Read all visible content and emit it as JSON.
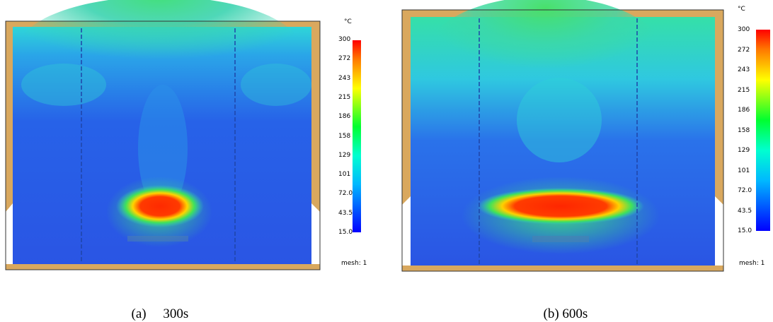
{
  "chart_data": [
    {
      "type": "heatmap",
      "caption_index": "(a)",
      "caption_time": "300s",
      "unit": "°C",
      "mesh_label": "mesh: 1",
      "colorbar": {
        "min": 15.0,
        "max": 300,
        "ticks": [
          "300",
          "272",
          "243",
          "215",
          "186",
          "158",
          "129",
          "101",
          "72.0",
          "43.5",
          "15.0"
        ]
      },
      "hot_zone": {
        "peak_c": 300,
        "shape": "compact",
        "width_fraction": 0.28
      },
      "colors": [
        "#0000ff",
        "#00ffff",
        "#00ff00",
        "#ffff00",
        "#ff0000"
      ]
    },
    {
      "type": "heatmap",
      "caption_index": "(b)",
      "caption_time": "600s",
      "unit": "°C",
      "mesh_label": "mesh: 1",
      "colorbar": {
        "min": 15.0,
        "max": 300,
        "ticks": [
          "300",
          "272",
          "243",
          "215",
          "186",
          "158",
          "129",
          "101",
          "72.0",
          "43.5",
          "15.0"
        ]
      },
      "hot_zone": {
        "peak_c": 300,
        "shape": "elongated",
        "width_fraction": 0.58
      },
      "colors": [
        "#0000ff",
        "#00ffff",
        "#00ff00",
        "#ffff00",
        "#ff0000"
      ]
    }
  ]
}
